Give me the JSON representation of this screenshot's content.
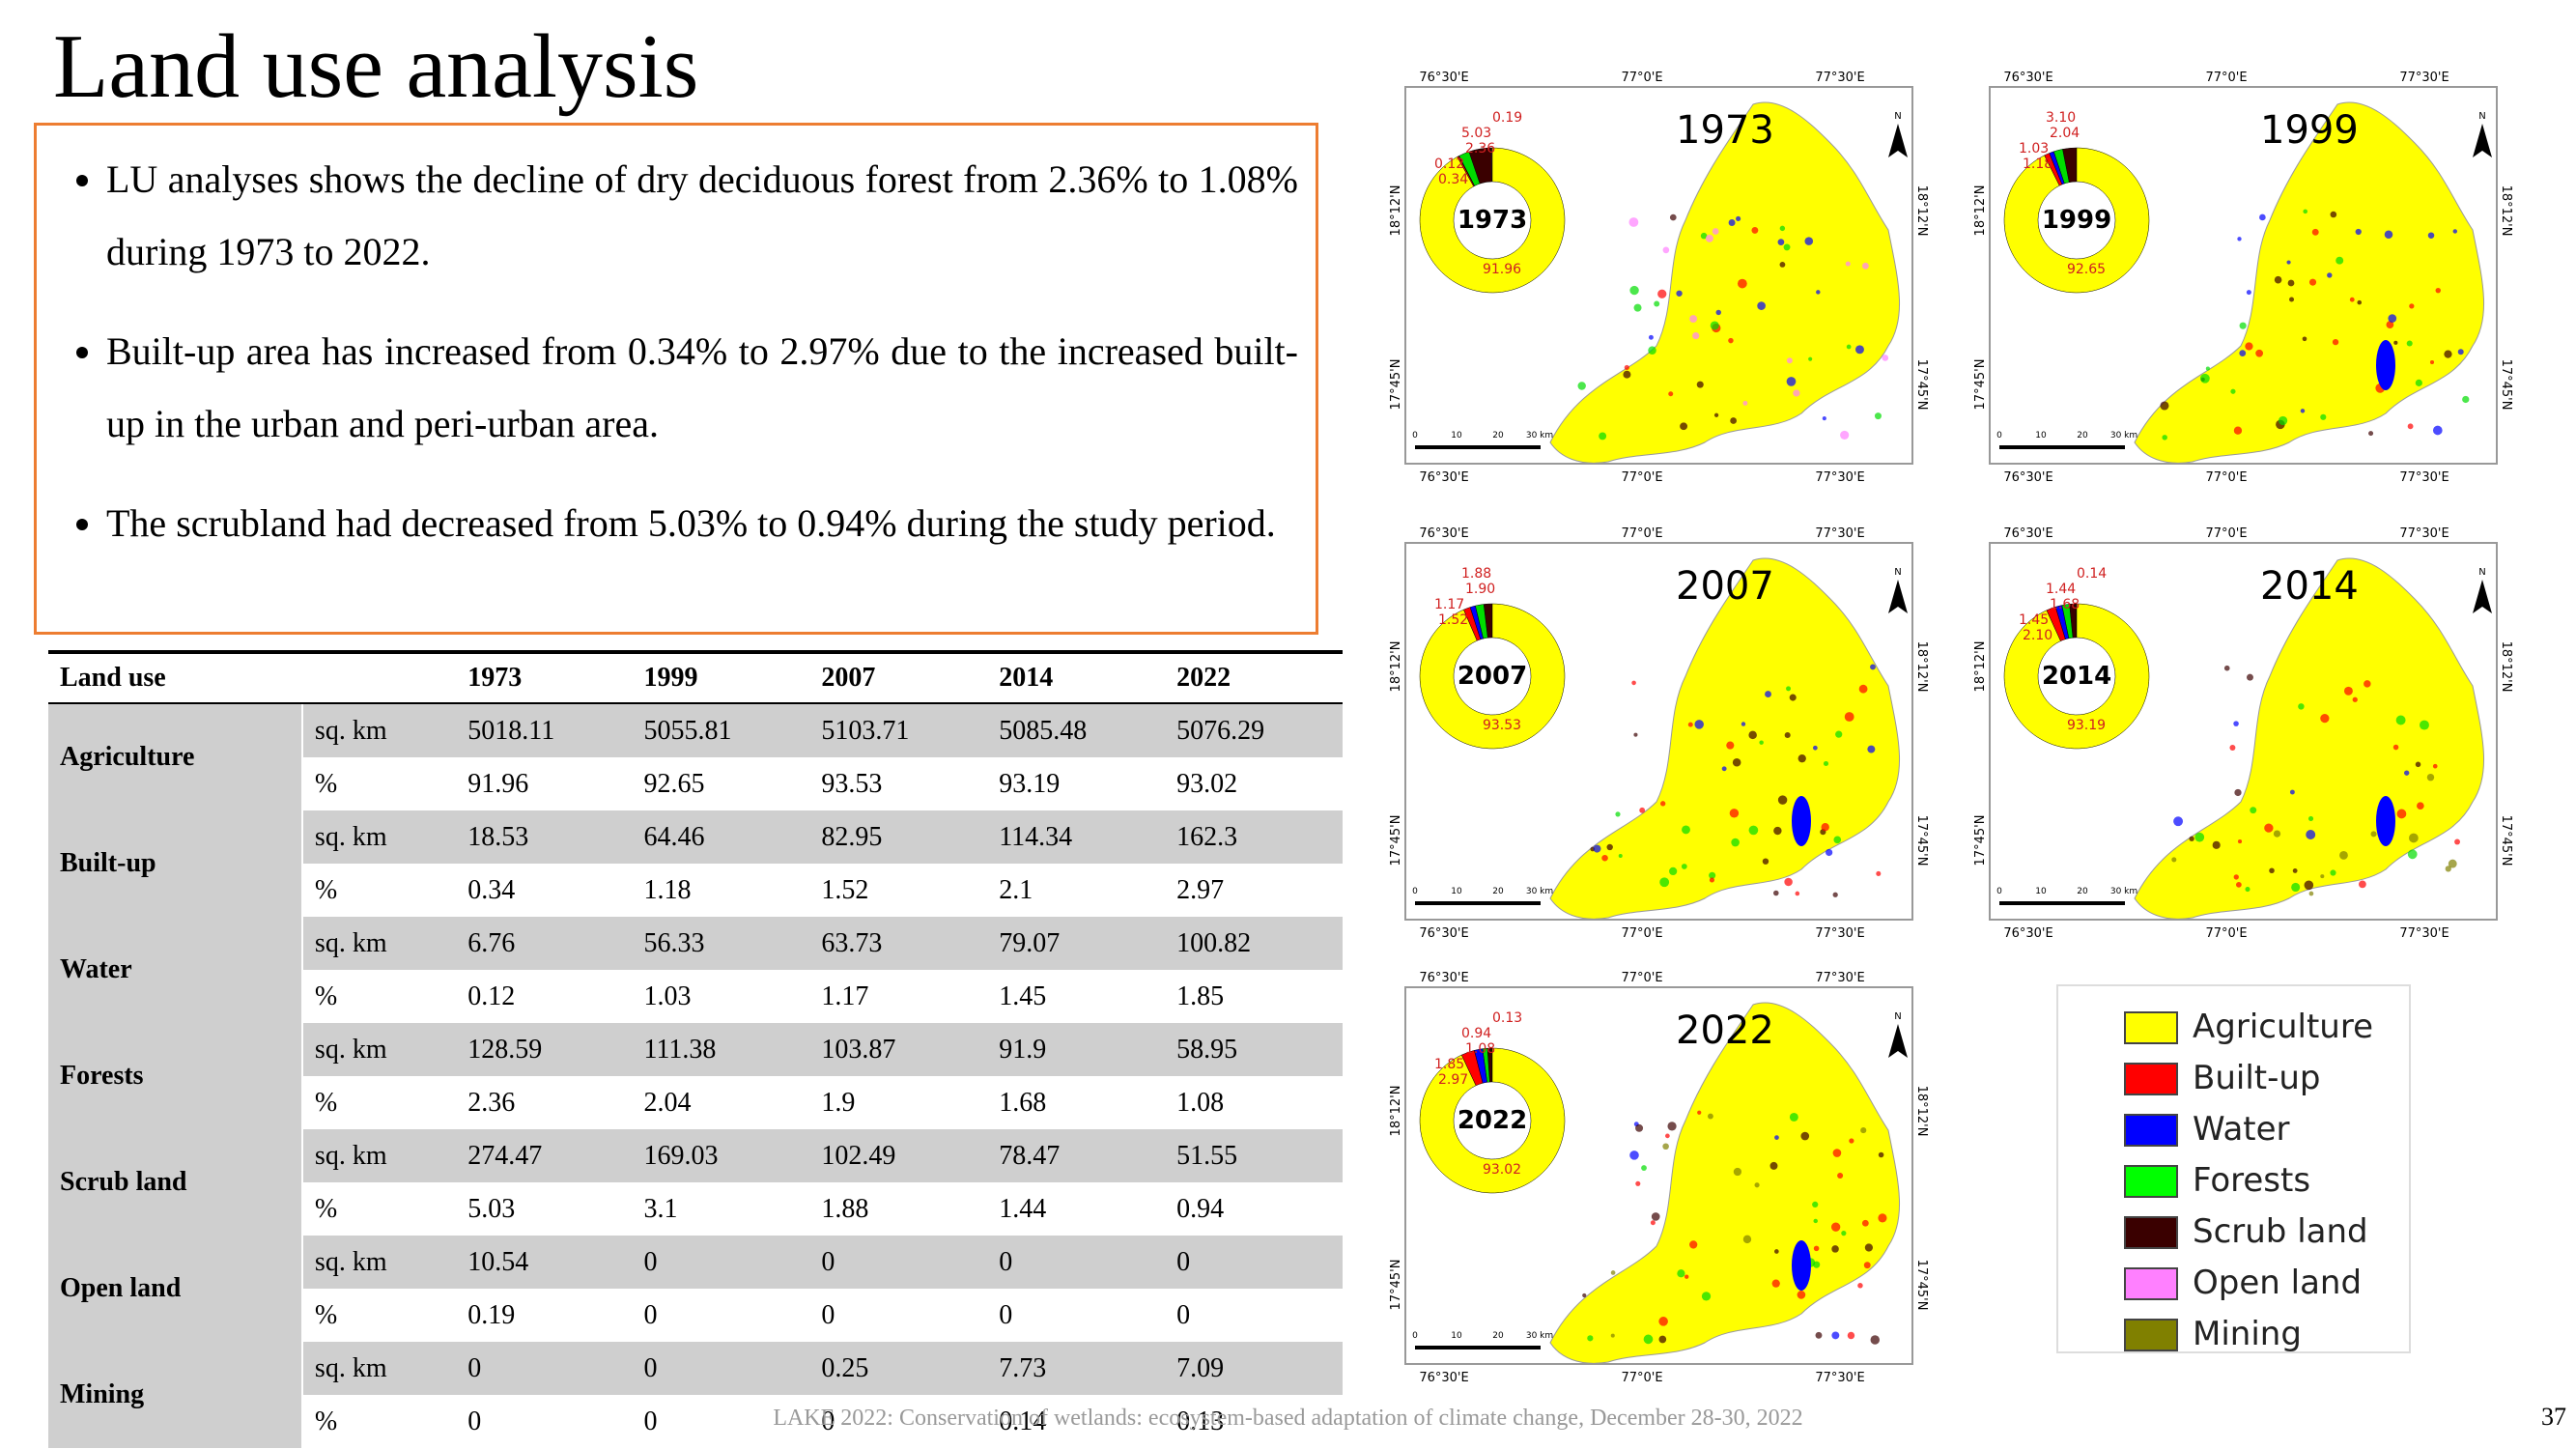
{
  "title": "Land use analysis",
  "bullets": [
    "LU analyses shows the decline of dry deciduous forest from 2.36% to 1.08% during 1973 to 2022.",
    "Built-up area has increased from 0.34% to 2.97% due to the increased built-up in the urban and peri-urban area.",
    "The scrubland had decreased from 5.03% to 0.94% during the study period."
  ],
  "table": {
    "header": [
      "Land use",
      "1973",
      "1999",
      "2007",
      "2014",
      "2022"
    ],
    "groups": [
      {
        "name": "Agriculture",
        "rows": [
          [
            "sq. km",
            "5018.11",
            "5055.81",
            "5103.71",
            "5085.48",
            "5076.29"
          ],
          [
            "%",
            "91.96",
            "92.65",
            "93.53",
            "93.19",
            "93.02"
          ]
        ]
      },
      {
        "name": "Built-up",
        "rows": [
          [
            "sq. km",
            "18.53",
            "64.46",
            "82.95",
            "114.34",
            "162.3"
          ],
          [
            "%",
            "0.34",
            "1.18",
            "1.52",
            "2.1",
            "2.97"
          ]
        ]
      },
      {
        "name": "Water",
        "rows": [
          [
            "sq. km",
            "6.76",
            "56.33",
            "63.73",
            "79.07",
            "100.82"
          ],
          [
            "%",
            "0.12",
            "1.03",
            "1.17",
            "1.45",
            "1.85"
          ]
        ]
      },
      {
        "name": "Forests",
        "rows": [
          [
            "sq. km",
            "128.59",
            "111.38",
            "103.87",
            "91.9",
            "58.95"
          ],
          [
            "%",
            "2.36",
            "2.04",
            "1.9",
            "1.68",
            "1.08"
          ]
        ]
      },
      {
        "name": "Scrub land",
        "rows": [
          [
            "sq. km",
            "274.47",
            "169.03",
            "102.49",
            "78.47",
            "51.55"
          ],
          [
            "%",
            "5.03",
            "3.1",
            "1.88",
            "1.44",
            "0.94"
          ]
        ]
      },
      {
        "name": "Open land",
        "rows": [
          [
            "sq. km",
            "10.54",
            "0",
            "0",
            "0",
            "0"
          ],
          [
            "%",
            "0.19",
            "0",
            "0",
            "0",
            "0"
          ]
        ]
      },
      {
        "name": "Mining",
        "rows": [
          [
            "sq. km",
            "0",
            "0",
            "0.25",
            "7.73",
            "7.09"
          ],
          [
            "%",
            "0",
            "0",
            "0",
            "0.14",
            "0.13"
          ]
        ]
      }
    ]
  },
  "map_labels": {
    "lon": [
      "76°30'E",
      "77°0'E",
      "77°30'E"
    ],
    "lat": [
      "18°12'N",
      "17°45'N"
    ],
    "scale": [
      "0",
      "10",
      "20",
      "30 km"
    ],
    "north": "N"
  },
  "maps": [
    {
      "year": "1973",
      "values": [
        91.96,
        0.34,
        0.12,
        2.36,
        5.03,
        0.19
      ],
      "value_labels": [
        "91.96",
        "0.34",
        "0.12",
        "2.36",
        "5.03",
        "0.19"
      ],
      "colors": [
        "#ffff00",
        "#ff0000",
        "#0000ff",
        "#00dd00",
        "#3a0000",
        "#ff80ff"
      ]
    },
    {
      "year": "1999",
      "values": [
        92.65,
        1.18,
        1.03,
        2.04,
        3.1
      ],
      "value_labels": [
        "92.65",
        "1.18",
        "1.03",
        "2.04",
        "3.10"
      ],
      "colors": [
        "#ffff00",
        "#ff0000",
        "#0000ff",
        "#00dd00",
        "#3a0000"
      ]
    },
    {
      "year": "2007",
      "values": [
        93.53,
        1.52,
        1.17,
        1.9,
        1.88
      ],
      "value_labels": [
        "93.53",
        "1.52",
        "1.17",
        "1.90",
        "1.88"
      ],
      "colors": [
        "#ffff00",
        "#ff0000",
        "#0000ff",
        "#00dd00",
        "#3a0000"
      ]
    },
    {
      "year": "2014",
      "values": [
        93.19,
        2.1,
        1.45,
        1.68,
        1.44,
        0.14
      ],
      "value_labels": [
        "93.19",
        "2.10",
        "1.45",
        "1.68",
        "1.44",
        "0.14"
      ],
      "colors": [
        "#ffff00",
        "#ff0000",
        "#0000ff",
        "#00dd00",
        "#3a0000",
        "#808000"
      ]
    },
    {
      "year": "2022",
      "values": [
        93.02,
        2.97,
        1.85,
        1.08,
        0.94,
        0.13
      ],
      "value_labels": [
        "93.02",
        "2.97",
        "1.85",
        "1.08",
        "0.94",
        "0.13"
      ],
      "colors": [
        "#ffff00",
        "#ff0000",
        "#0000ff",
        "#00dd00",
        "#3a0000",
        "#808000"
      ]
    }
  ],
  "legend": [
    {
      "name": "Agriculture",
      "color": "#ffff00"
    },
    {
      "name": "Built-up",
      "color": "#ff0000"
    },
    {
      "name": "Water",
      "color": "#0000ff"
    },
    {
      "name": "Forests",
      "color": "#00ff00"
    },
    {
      "name": "Scrub land",
      "color": "#3a0000"
    },
    {
      "name": "Open land",
      "color": "#ff80ff"
    },
    {
      "name": "Mining",
      "color": "#808000"
    }
  ],
  "footer": "LAKE 2022: Conservation of wetlands: ecosystem-based adaptation of climate change, December 28-30, 2022",
  "page_number": "37"
}
